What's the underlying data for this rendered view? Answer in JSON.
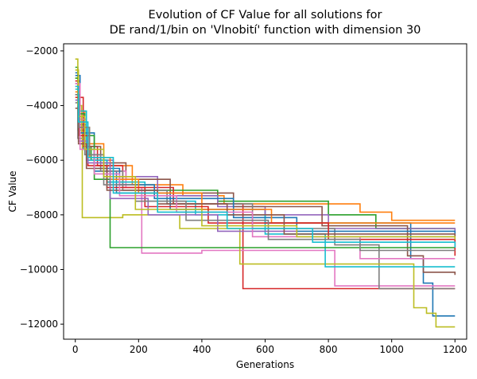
{
  "chart_data": {
    "type": "line",
    "style": "step",
    "title_lines": [
      "Evolution of CF Value for all solutions for",
      "DE rand/1/bin on 'Vlnobití' function with dimension 30"
    ],
    "xlabel": "Generations",
    "ylabel": "CF Value",
    "xlim": [
      -37,
      1237
    ],
    "ylim": [
      -12550,
      -1740
    ],
    "x_ticks": [
      0,
      200,
      400,
      600,
      800,
      1000,
      1200
    ],
    "y_ticks": [
      -12000,
      -10000,
      -8000,
      -6000,
      -4000,
      -2000
    ],
    "x_tick_labels": [
      "0",
      "200",
      "400",
      "600",
      "800",
      "1000",
      "1200"
    ],
    "y_tick_labels": [
      "−12000",
      "−10000",
      "−8000",
      "−6000",
      "−4000",
      "−2000"
    ],
    "grid": false,
    "legend": false,
    "colors": [
      "#1f77b4",
      "#ff7f0e",
      "#2ca02c",
      "#d62728",
      "#9467bd",
      "#8c564b",
      "#e377c2",
      "#7f7f7f",
      "#bcbd22",
      "#17becf"
    ],
    "series": [
      {
        "color": "#1f77b4",
        "points": [
          [
            0,
            -2800
          ],
          [
            8,
            -4600
          ],
          [
            25,
            -5600
          ],
          [
            60,
            -6400
          ],
          [
            130,
            -7200
          ],
          [
            300,
            -7800
          ],
          [
            600,
            -8300
          ],
          [
            1060,
            -9600
          ],
          [
            1100,
            -10500
          ],
          [
            1130,
            -11700
          ],
          [
            1200,
            -11700
          ]
        ]
      },
      {
        "color": "#ff7f0e",
        "points": [
          [
            0,
            -3000
          ],
          [
            10,
            -4200
          ],
          [
            30,
            -5400
          ],
          [
            90,
            -6200
          ],
          [
            180,
            -6900
          ],
          [
            340,
            -7300
          ],
          [
            470,
            -7600
          ],
          [
            900,
            -7900
          ],
          [
            1000,
            -8200
          ],
          [
            1200,
            -8200
          ]
        ]
      },
      {
        "color": "#2ca02c",
        "points": [
          [
            0,
            -2600
          ],
          [
            8,
            -4900
          ],
          [
            30,
            -5500
          ],
          [
            50,
            -6000
          ],
          [
            100,
            -6800
          ],
          [
            200,
            -7100
          ],
          [
            450,
            -7500
          ],
          [
            800,
            -8000
          ],
          [
            950,
            -8500
          ],
          [
            1200,
            -8500
          ]
        ]
      },
      {
        "color": "#d62728",
        "points": [
          [
            0,
            -3100
          ],
          [
            15,
            -3700
          ],
          [
            25,
            -5500
          ],
          [
            70,
            -6200
          ],
          [
            150,
            -7000
          ],
          [
            310,
            -7600
          ],
          [
            530,
            -10700
          ],
          [
            1200,
            -10700
          ]
        ]
      },
      {
        "color": "#9467bd",
        "points": [
          [
            0,
            -3200
          ],
          [
            10,
            -4800
          ],
          [
            40,
            -6000
          ],
          [
            120,
            -6600
          ],
          [
            260,
            -7300
          ],
          [
            450,
            -7700
          ],
          [
            600,
            -8000
          ],
          [
            800,
            -8500
          ],
          [
            1200,
            -8600
          ]
        ]
      },
      {
        "color": "#8c564b",
        "points": [
          [
            0,
            -3600
          ],
          [
            10,
            -4700
          ],
          [
            35,
            -5500
          ],
          [
            80,
            -6100
          ],
          [
            160,
            -6700
          ],
          [
            300,
            -7200
          ],
          [
            500,
            -7700
          ],
          [
            780,
            -8400
          ],
          [
            1050,
            -9500
          ],
          [
            1100,
            -10100
          ],
          [
            1200,
            -10200
          ]
        ]
      },
      {
        "color": "#e377c2",
        "points": [
          [
            0,
            -3300
          ],
          [
            12,
            -4500
          ],
          [
            35,
            -5800
          ],
          [
            90,
            -6400
          ],
          [
            160,
            -7000
          ],
          [
            210,
            -9400
          ],
          [
            400,
            -9300
          ],
          [
            820,
            -10600
          ],
          [
            1150,
            -10600
          ],
          [
            1200,
            -10600
          ]
        ]
      },
      {
        "color": "#7f7f7f",
        "points": [
          [
            0,
            -3900
          ],
          [
            8,
            -5200
          ],
          [
            30,
            -5800
          ],
          [
            80,
            -6400
          ],
          [
            150,
            -7100
          ],
          [
            290,
            -7600
          ],
          [
            560,
            -8500
          ],
          [
            820,
            -9100
          ],
          [
            960,
            -10700
          ],
          [
            1100,
            -10700
          ],
          [
            1200,
            -10700
          ]
        ]
      },
      {
        "color": "#bcbd22",
        "points": [
          [
            0,
            -2300
          ],
          [
            8,
            -4000
          ],
          [
            20,
            -5000
          ],
          [
            22,
            -8100
          ],
          [
            150,
            -8000
          ],
          [
            330,
            -8500
          ],
          [
            520,
            -9800
          ],
          [
            1060,
            -9800
          ],
          [
            1070,
            -11400
          ],
          [
            1090,
            -11400
          ],
          [
            1110,
            -11600
          ],
          [
            1140,
            -12100
          ],
          [
            1200,
            -12100
          ]
        ]
      },
      {
        "color": "#17becf",
        "points": [
          [
            0,
            -3400
          ],
          [
            10,
            -4200
          ],
          [
            35,
            -6000
          ],
          [
            100,
            -6800
          ],
          [
            220,
            -7500
          ],
          [
            380,
            -8000
          ],
          [
            600,
            -8700
          ],
          [
            790,
            -9900
          ],
          [
            1000,
            -9900
          ],
          [
            1200,
            -9900
          ]
        ]
      },
      {
        "color": "#1f77b4",
        "points": [
          [
            0,
            -2900
          ],
          [
            15,
            -5000
          ],
          [
            60,
            -6300
          ],
          [
            140,
            -6900
          ],
          [
            250,
            -7400
          ],
          [
            500,
            -8100
          ],
          [
            700,
            -8600
          ],
          [
            1200,
            -8700
          ]
        ]
      },
      {
        "color": "#ff7f0e",
        "points": [
          [
            0,
            -3500
          ],
          [
            12,
            -4800
          ],
          [
            45,
            -5900
          ],
          [
            110,
            -6700
          ],
          [
            200,
            -7200
          ],
          [
            400,
            -7800
          ],
          [
            620,
            -8300
          ],
          [
            1200,
            -8300
          ]
        ]
      },
      {
        "color": "#2ca02c",
        "points": [
          [
            0,
            -3000
          ],
          [
            10,
            -4300
          ],
          [
            30,
            -5100
          ],
          [
            60,
            -6700
          ],
          [
            110,
            -9200
          ],
          [
            200,
            -9200
          ],
          [
            1200,
            -9200
          ]
        ]
      },
      {
        "color": "#d62728",
        "points": [
          [
            0,
            -3700
          ],
          [
            12,
            -5100
          ],
          [
            40,
            -6200
          ],
          [
            100,
            -7000
          ],
          [
            220,
            -7700
          ],
          [
            420,
            -8300
          ],
          [
            800,
            -8900
          ],
          [
            1200,
            -9500
          ]
        ]
      },
      {
        "color": "#9467bd",
        "points": [
          [
            0,
            -3800
          ],
          [
            10,
            -5300
          ],
          [
            40,
            -6100
          ],
          [
            110,
            -7400
          ],
          [
            230,
            -8000
          ],
          [
            450,
            -8600
          ],
          [
            700,
            -8800
          ],
          [
            1200,
            -8800
          ]
        ]
      },
      {
        "color": "#8c564b",
        "points": [
          [
            0,
            -4100
          ],
          [
            10,
            -5400
          ],
          [
            35,
            -6300
          ],
          [
            100,
            -7100
          ],
          [
            260,
            -7600
          ],
          [
            480,
            -8000
          ],
          [
            660,
            -8700
          ],
          [
            1200,
            -8800
          ]
        ]
      },
      {
        "color": "#e377c2",
        "points": [
          [
            0,
            -3200
          ],
          [
            15,
            -5600
          ],
          [
            60,
            -6500
          ],
          [
            140,
            -7300
          ],
          [
            320,
            -7900
          ],
          [
            560,
            -8800
          ],
          [
            900,
            -9600
          ],
          [
            1200,
            -9600
          ]
        ]
      },
      {
        "color": "#7f7f7f",
        "points": [
          [
            0,
            -3600
          ],
          [
            12,
            -4800
          ],
          [
            45,
            -5800
          ],
          [
            90,
            -6900
          ],
          [
            190,
            -7500
          ],
          [
            350,
            -8200
          ],
          [
            610,
            -8900
          ],
          [
            900,
            -9300
          ],
          [
            1200,
            -9300
          ]
        ]
      },
      {
        "color": "#bcbd22",
        "points": [
          [
            0,
            -2700
          ],
          [
            10,
            -4400
          ],
          [
            30,
            -5600
          ],
          [
            90,
            -6600
          ],
          [
            190,
            -7800
          ],
          [
            400,
            -8400
          ],
          [
            700,
            -8800
          ],
          [
            1200,
            -8900
          ]
        ]
      },
      {
        "color": "#17becf",
        "points": [
          [
            0,
            -3300
          ],
          [
            10,
            -4600
          ],
          [
            40,
            -5900
          ],
          [
            120,
            -7200
          ],
          [
            260,
            -7900
          ],
          [
            480,
            -8500
          ],
          [
            750,
            -9000
          ],
          [
            1200,
            -9200
          ]
        ]
      }
    ]
  }
}
